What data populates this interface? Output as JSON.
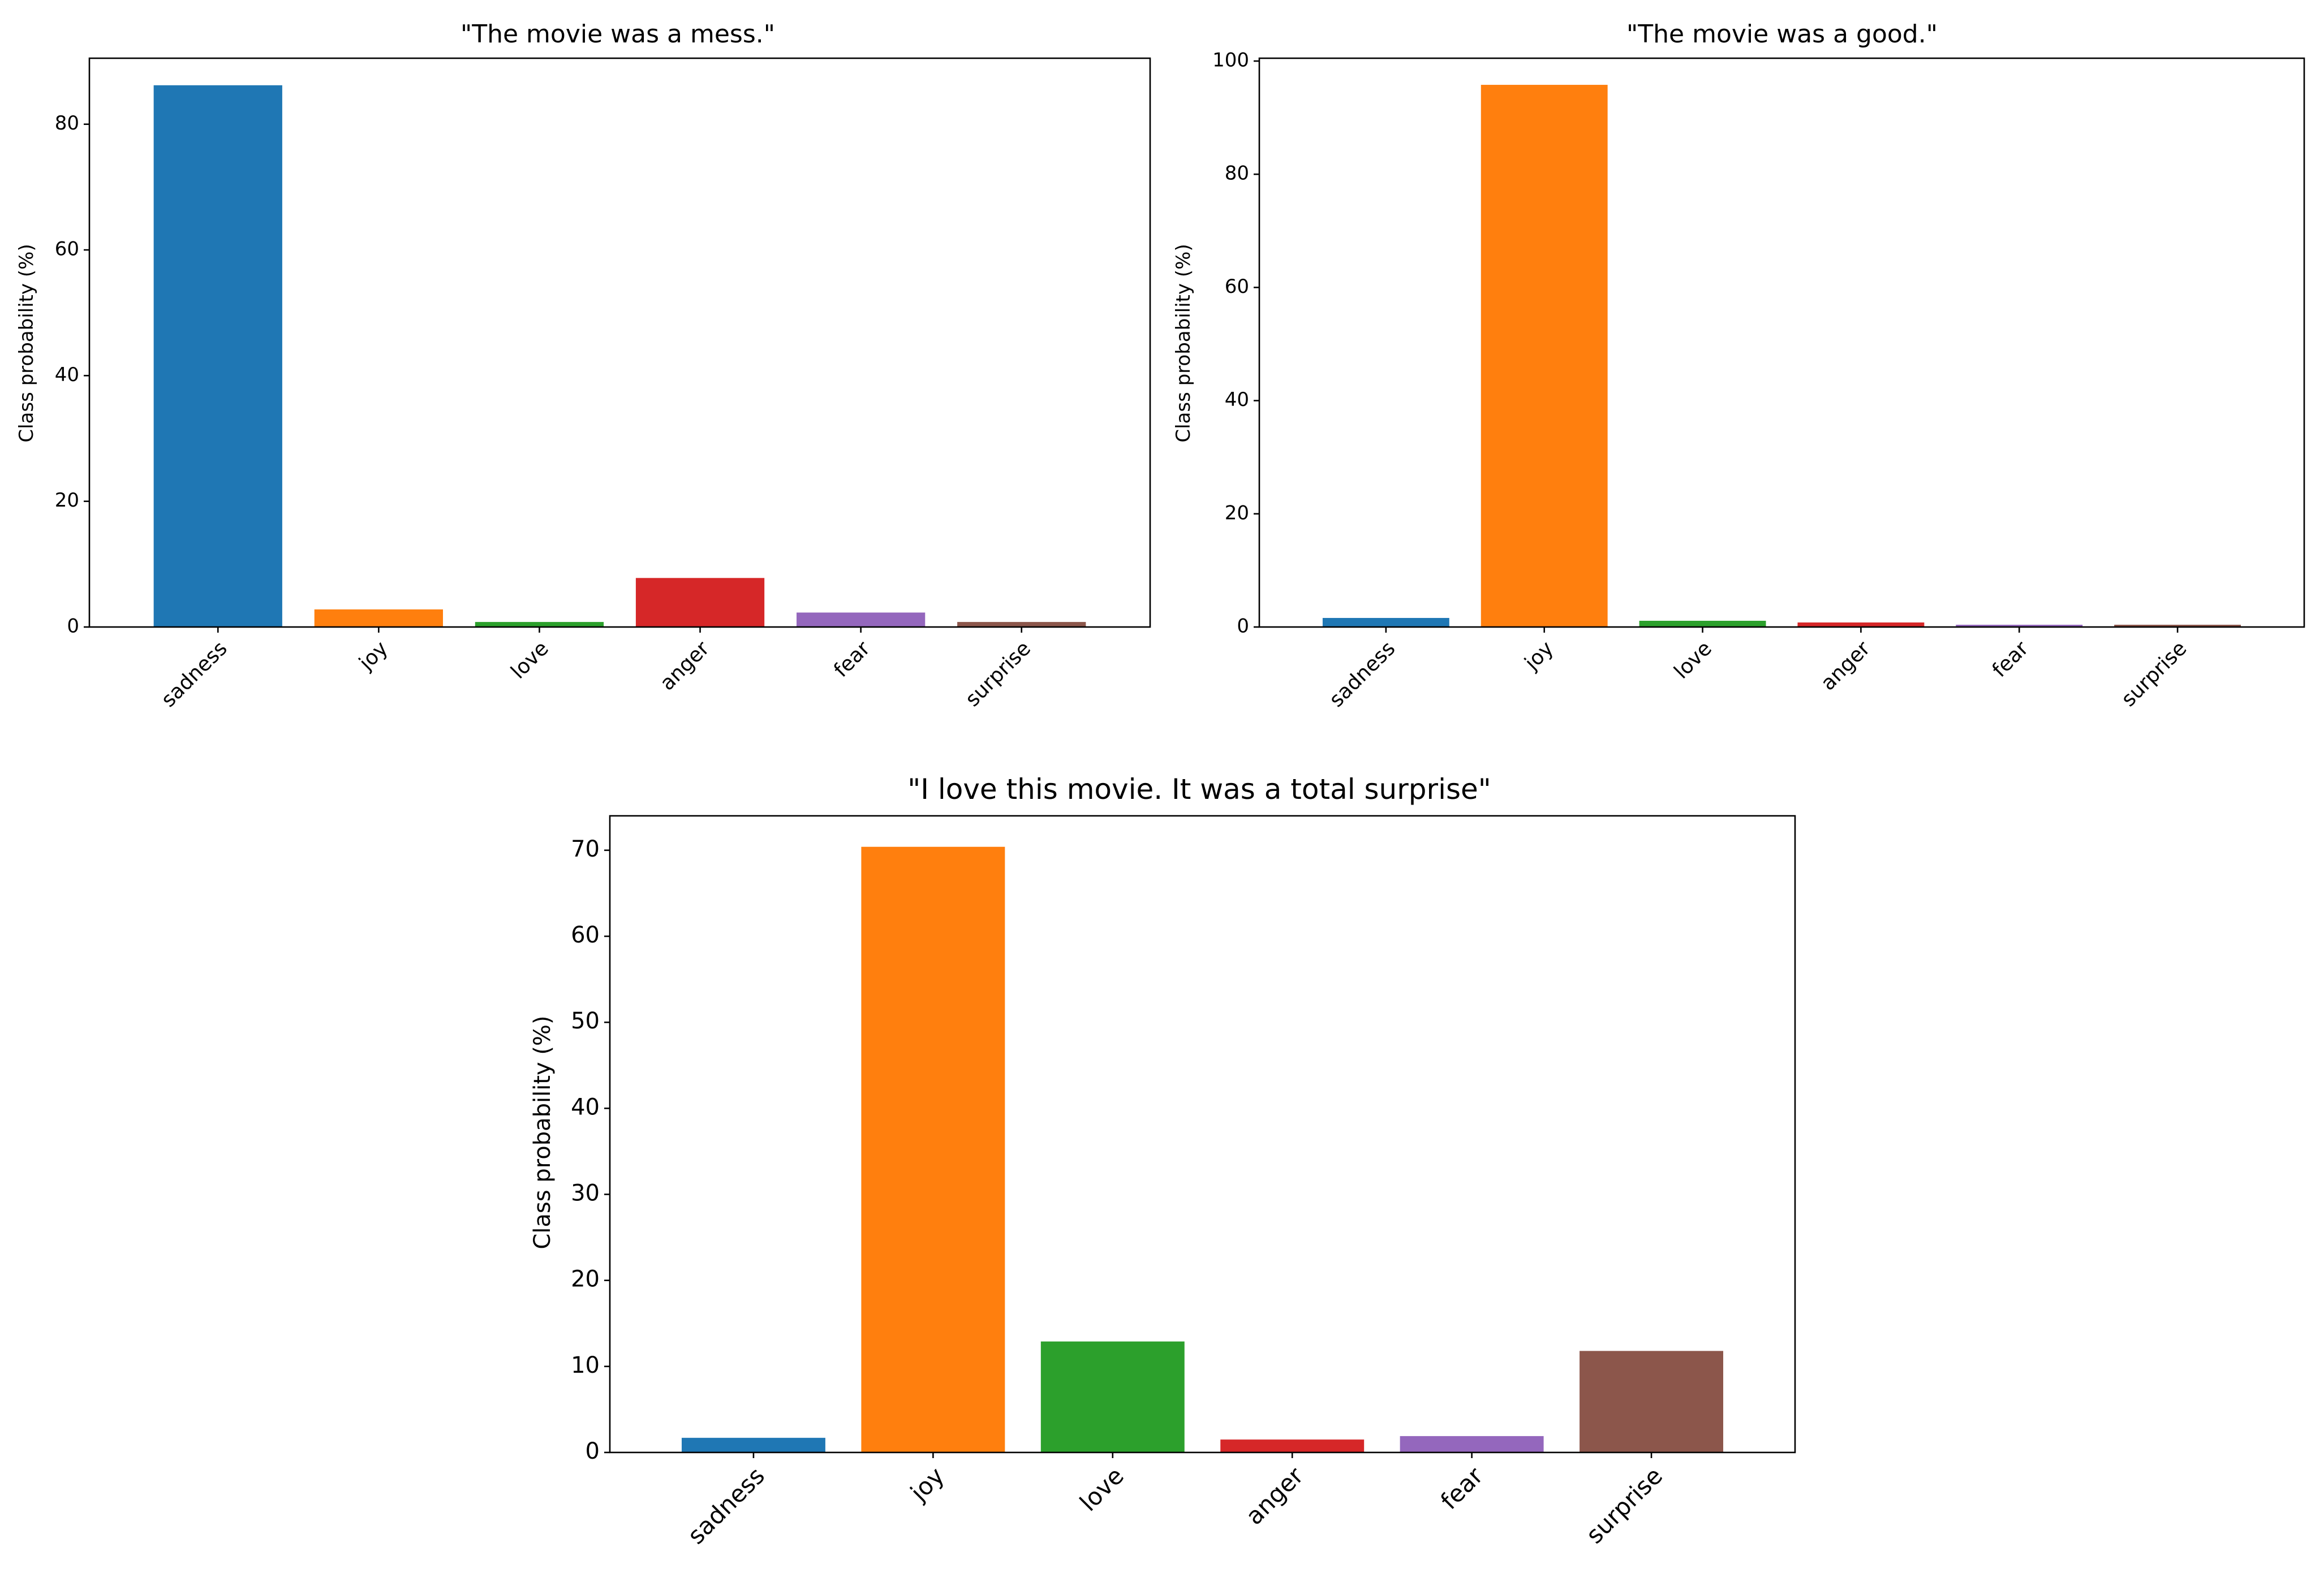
{
  "chart_data": [
    {
      "type": "bar",
      "title": "\"The movie was a mess.\"",
      "ylabel": "Class probability (%)",
      "xlabel": "",
      "categories": [
        "sadness",
        "joy",
        "love",
        "anger",
        "fear",
        "surprise"
      ],
      "values": [
        86.2,
        2.8,
        0.8,
        7.8,
        2.3,
        0.8
      ],
      "colors": [
        "#1f77b4",
        "#ff7f0e",
        "#2ca02c",
        "#d62728",
        "#9467bd",
        "#8c564b"
      ],
      "ylim": [
        0,
        90.5
      ],
      "yticks": [
        0,
        20,
        40,
        60,
        80
      ],
      "grid": false
    },
    {
      "type": "bar",
      "title": "\"The movie was a good.\"",
      "ylabel": "Class probability (%)",
      "xlabel": "",
      "categories": [
        "sadness",
        "joy",
        "love",
        "anger",
        "fear",
        "surprise"
      ],
      "values": [
        1.6,
        95.8,
        1.1,
        0.8,
        0.4,
        0.4
      ],
      "colors": [
        "#1f77b4",
        "#ff7f0e",
        "#2ca02c",
        "#d62728",
        "#9467bd",
        "#8c564b"
      ],
      "ylim": [
        0,
        100.5
      ],
      "yticks": [
        0,
        20,
        40,
        60,
        80,
        100
      ],
      "grid": false
    },
    {
      "type": "bar",
      "title": "\"I love this movie. It was a total surprise\"",
      "ylabel": "Class probability (%)",
      "xlabel": "",
      "categories": [
        "sadness",
        "joy",
        "love",
        "anger",
        "fear",
        "surprise"
      ],
      "values": [
        1.7,
        70.4,
        12.9,
        1.5,
        1.9,
        11.8
      ],
      "colors": [
        "#1f77b4",
        "#ff7f0e",
        "#2ca02c",
        "#d62728",
        "#9467bd",
        "#8c564b"
      ],
      "ylim": [
        0,
        74
      ],
      "yticks": [
        0,
        10,
        20,
        30,
        40,
        50,
        60,
        70
      ],
      "grid": false
    }
  ]
}
